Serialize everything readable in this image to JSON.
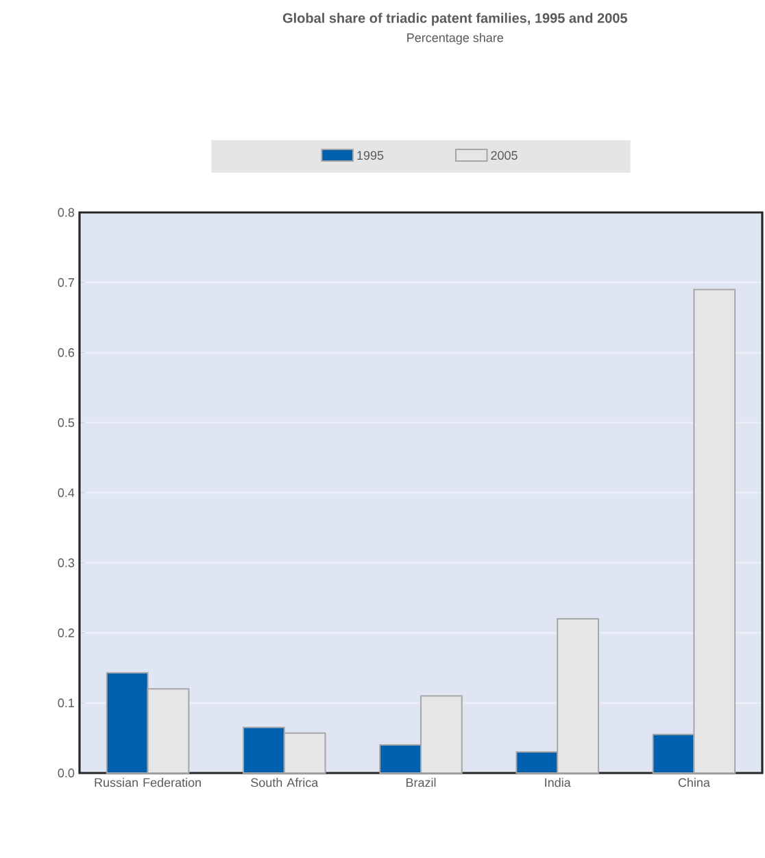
{
  "chart_data": {
    "type": "bar",
    "title": "Global share of triadic patent families, 1995 and 2005",
    "subtitle": "Percentage share",
    "categories": [
      "Russian Federation",
      "South Africa",
      "Brazil",
      "India",
      "China"
    ],
    "series": [
      {
        "name": "1995",
        "color": "#0060b0",
        "values": [
          0.143,
          0.065,
          0.04,
          0.03,
          0.055
        ]
      },
      {
        "name": "2005",
        "color": "#e6e6e6",
        "values": [
          0.12,
          0.057,
          0.11,
          0.22,
          0.69
        ]
      }
    ],
    "ylim": [
      0,
      0.8
    ],
    "yticks": [
      {
        "value": 0,
        "label": "0.0"
      },
      0.1,
      0.2,
      0.3,
      0.4,
      0.5,
      0.6,
      0.7,
      0.8
    ],
    "grid": "y",
    "legend": "top"
  }
}
